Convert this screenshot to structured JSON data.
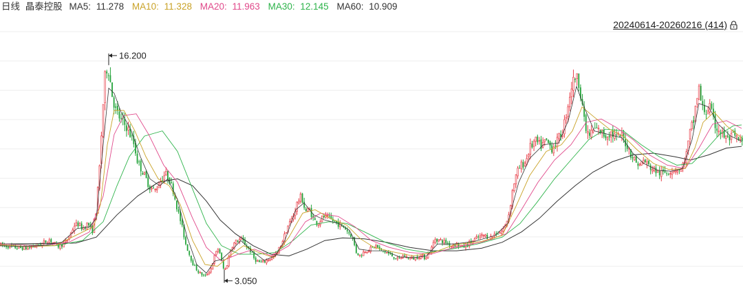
{
  "legend": {
    "period": "日线",
    "stock_name": "晶泰控股",
    "ma5": {
      "label": "MA5:",
      "value": "11.278",
      "color": "#333333"
    },
    "ma10": {
      "label": "MA10:",
      "value": "11.328",
      "color": "#c9a227"
    },
    "ma20": {
      "label": "MA20:",
      "value": "11.963",
      "color": "#e0488a"
    },
    "ma30": {
      "label": "MA30:",
      "value": "12.145",
      "color": "#2db34a"
    },
    "ma60": {
      "label": "MA60:",
      "value": "10.909",
      "color": "#333333"
    }
  },
  "range": {
    "text": "20240614-20260216 (414)",
    "icon": "lock-icon"
  },
  "colors": {
    "up": "#e8404a",
    "down": "#23a33a",
    "grid": "#eeeeee"
  },
  "chart_data": {
    "type": "candlestick",
    "bars": 414,
    "date_range": [
      "2024-06-14",
      "2026-02-16"
    ],
    "annotations": {
      "high": {
        "label": "16.200",
        "value": 16.2
      },
      "low": {
        "label": "3.050",
        "value": 3.05
      }
    },
    "ylim": [
      2.6,
      17.6
    ],
    "close_path": [
      [
        0,
        5.15
      ],
      [
        20,
        5.0
      ],
      [
        40,
        4.95
      ],
      [
        60,
        5.2
      ],
      [
        72,
        5.45
      ],
      [
        84,
        5.05
      ],
      [
        96,
        5.3
      ],
      [
        104,
        5.9
      ],
      [
        108,
        6.3
      ],
      [
        114,
        6.35
      ],
      [
        120,
        6.1
      ],
      [
        128,
        6.4
      ],
      [
        134,
        5.9
      ],
      [
        140,
        7.2
      ],
      [
        145,
        9.8
      ],
      [
        148,
        12.0
      ],
      [
        152,
        14.8
      ],
      [
        156,
        15.6
      ],
      [
        159,
        15.2
      ],
      [
        162,
        14.1
      ],
      [
        168,
        13.0
      ],
      [
        176,
        12.4
      ],
      [
        185,
        12.0
      ],
      [
        195,
        11.0
      ],
      [
        200,
        10.0
      ],
      [
        210,
        9.2
      ],
      [
        218,
        8.5
      ],
      [
        225,
        8.3
      ],
      [
        232,
        8.8
      ],
      [
        240,
        9.3
      ],
      [
        245,
        9.1
      ],
      [
        252,
        8.3
      ],
      [
        258,
        7.2
      ],
      [
        264,
        6.3
      ],
      [
        270,
        5.2
      ],
      [
        276,
        4.5
      ],
      [
        282,
        3.9
      ],
      [
        290,
        3.5
      ],
      [
        298,
        3.3
      ],
      [
        306,
        3.7
      ],
      [
        312,
        4.5
      ],
      [
        318,
        5.0
      ],
      [
        323,
        4.0
      ],
      [
        326,
        3.6
      ],
      [
        330,
        4.0
      ],
      [
        336,
        5.0
      ],
      [
        342,
        5.3
      ],
      [
        350,
        5.5
      ],
      [
        358,
        5.1
      ],
      [
        364,
        4.8
      ],
      [
        370,
        4.3
      ],
      [
        378,
        4.1
      ],
      [
        386,
        4.2
      ],
      [
        394,
        4.4
      ],
      [
        402,
        4.6
      ],
      [
        410,
        5.3
      ],
      [
        418,
        6.2
      ],
      [
        426,
        6.8
      ],
      [
        432,
        7.6
      ],
      [
        438,
        8.0
      ],
      [
        444,
        7.1
      ],
      [
        450,
        7.2
      ],
      [
        456,
        6.6
      ],
      [
        462,
        6.4
      ],
      [
        470,
        6.8
      ],
      [
        478,
        6.7
      ],
      [
        486,
        6.5
      ],
      [
        494,
        6.3
      ],
      [
        500,
        6.2
      ],
      [
        506,
        5.9
      ],
      [
        512,
        5.6
      ],
      [
        518,
        4.7
      ],
      [
        524,
        4.5
      ],
      [
        530,
        4.8
      ],
      [
        538,
        4.9
      ],
      [
        546,
        5.1
      ],
      [
        554,
        4.8
      ],
      [
        562,
        4.7
      ],
      [
        570,
        4.5
      ],
      [
        578,
        4.3
      ],
      [
        586,
        4.5
      ],
      [
        594,
        4.4
      ],
      [
        602,
        4.35
      ],
      [
        610,
        4.5
      ],
      [
        618,
        4.4
      ],
      [
        626,
        4.8
      ],
      [
        632,
        5.5
      ],
      [
        640,
        5.4
      ],
      [
        648,
        5.3
      ],
      [
        656,
        5.1
      ],
      [
        664,
        5.2
      ],
      [
        672,
        5.0
      ],
      [
        680,
        5.2
      ],
      [
        688,
        5.4
      ],
      [
        696,
        5.6
      ],
      [
        704,
        5.7
      ],
      [
        712,
        5.55
      ],
      [
        720,
        5.8
      ],
      [
        728,
        5.9
      ],
      [
        734,
        6.2
      ],
      [
        740,
        7.0
      ],
      [
        746,
        8.6
      ],
      [
        752,
        9.4
      ],
      [
        758,
        9.8
      ],
      [
        764,
        10.0
      ],
      [
        770,
        10.8
      ],
      [
        778,
        11.2
      ],
      [
        786,
        10.9
      ],
      [
        794,
        11.2
      ],
      [
        802,
        10.8
      ],
      [
        810,
        11.2
      ],
      [
        818,
        11.8
      ],
      [
        824,
        13.0
      ],
      [
        830,
        14.3
      ],
      [
        836,
        15.0
      ],
      [
        841,
        14.7
      ],
      [
        846,
        13.6
      ],
      [
        850,
        12.0
      ],
      [
        856,
        11.5
      ],
      [
        864,
        11.9
      ],
      [
        872,
        11.8
      ],
      [
        880,
        11.5
      ],
      [
        888,
        11.7
      ],
      [
        896,
        11.4
      ],
      [
        904,
        11.5
      ],
      [
        912,
        10.9
      ],
      [
        918,
        10.4
      ],
      [
        924,
        10.0
      ],
      [
        930,
        9.8
      ],
      [
        936,
        10.1
      ],
      [
        944,
        9.7
      ],
      [
        952,
        9.5
      ],
      [
        960,
        9.3
      ],
      [
        968,
        9.4
      ],
      [
        976,
        9.5
      ],
      [
        984,
        9.6
      ],
      [
        990,
        9.5
      ],
      [
        998,
        10.5
      ],
      [
        1004,
        11.9
      ],
      [
        1008,
        12.3
      ],
      [
        1012,
        13.5
      ],
      [
        1016,
        14.3
      ],
      [
        1020,
        13.2
      ],
      [
        1026,
        12.9
      ],
      [
        1032,
        13.2
      ],
      [
        1038,
        12.2
      ],
      [
        1044,
        11.9
      ],
      [
        1050,
        11.6
      ],
      [
        1058,
        11.3
      ],
      [
        1066,
        11.5
      ],
      [
        1072,
        11.3
      ],
      [
        1078,
        11.1
      ]
    ],
    "ma5_path": [
      [
        0,
        5.1
      ],
      [
        30,
        5.05
      ],
      [
        60,
        5.1
      ],
      [
        90,
        5.3
      ],
      [
        112,
        6.1
      ],
      [
        130,
        6.2
      ],
      [
        140,
        6.7
      ],
      [
        150,
        11.0
      ],
      [
        158,
        14.3
      ],
      [
        166,
        14.0
      ],
      [
        176,
        12.9
      ],
      [
        190,
        11.9
      ],
      [
        204,
        10.3
      ],
      [
        218,
        9.0
      ],
      [
        232,
        8.6
      ],
      [
        244,
        9.0
      ],
      [
        258,
        7.8
      ],
      [
        272,
        5.6
      ],
      [
        286,
        4.0
      ],
      [
        300,
        3.5
      ],
      [
        312,
        4.2
      ],
      [
        322,
        4.3
      ],
      [
        336,
        4.8
      ],
      [
        350,
        5.4
      ],
      [
        366,
        4.8
      ],
      [
        384,
        4.25
      ],
      [
        400,
        4.5
      ],
      [
        414,
        5.4
      ],
      [
        430,
        7.2
      ],
      [
        442,
        7.6
      ],
      [
        456,
        6.9
      ],
      [
        472,
        6.6
      ],
      [
        492,
        6.4
      ],
      [
        508,
        6.0
      ],
      [
        522,
        4.9
      ],
      [
        540,
        4.8
      ],
      [
        560,
        4.8
      ],
      [
        580,
        4.45
      ],
      [
        600,
        4.4
      ],
      [
        620,
        4.5
      ],
      [
        636,
        5.2
      ],
      [
        660,
        5.2
      ],
      [
        690,
        5.35
      ],
      [
        720,
        5.7
      ],
      [
        738,
        6.4
      ],
      [
        754,
        8.8
      ],
      [
        770,
        10.2
      ],
      [
        790,
        11.0
      ],
      [
        812,
        11.1
      ],
      [
        826,
        12.4
      ],
      [
        838,
        14.4
      ],
      [
        850,
        13.1
      ],
      [
        864,
        11.8
      ],
      [
        884,
        11.6
      ],
      [
        904,
        11.4
      ],
      [
        920,
        10.5
      ],
      [
        936,
        9.9
      ],
      [
        956,
        9.5
      ],
      [
        976,
        9.45
      ],
      [
        992,
        9.6
      ],
      [
        1006,
        11.3
      ],
      [
        1016,
        13.4
      ],
      [
        1030,
        13.2
      ],
      [
        1044,
        12.2
      ],
      [
        1062,
        11.5
      ],
      [
        1078,
        11.2
      ]
    ],
    "ma10_path": [
      [
        0,
        5.15
      ],
      [
        40,
        5.05
      ],
      [
        80,
        5.1
      ],
      [
        110,
        5.7
      ],
      [
        136,
        6.2
      ],
      [
        146,
        7.5
      ],
      [
        156,
        11.0
      ],
      [
        166,
        13.0
      ],
      [
        180,
        13.0
      ],
      [
        196,
        11.8
      ],
      [
        212,
        10.3
      ],
      [
        230,
        9.0
      ],
      [
        246,
        8.6
      ],
      [
        262,
        7.5
      ],
      [
        280,
        5.4
      ],
      [
        298,
        4.0
      ],
      [
        316,
        3.9
      ],
      [
        334,
        4.5
      ],
      [
        354,
        5.1
      ],
      [
        376,
        4.7
      ],
      [
        398,
        4.4
      ],
      [
        420,
        5.6
      ],
      [
        440,
        7.0
      ],
      [
        458,
        7.2
      ],
      [
        480,
        6.7
      ],
      [
        504,
        6.3
      ],
      [
        524,
        5.5
      ],
      [
        544,
        5.0
      ],
      [
        570,
        4.75
      ],
      [
        600,
        4.5
      ],
      [
        630,
        4.7
      ],
      [
        660,
        5.15
      ],
      [
        700,
        5.35
      ],
      [
        730,
        5.7
      ],
      [
        750,
        7.4
      ],
      [
        770,
        9.2
      ],
      [
        794,
        10.6
      ],
      [
        816,
        11.0
      ],
      [
        832,
        11.8
      ],
      [
        846,
        13.2
      ],
      [
        864,
        12.6
      ],
      [
        886,
        11.9
      ],
      [
        906,
        11.5
      ],
      [
        926,
        10.7
      ],
      [
        950,
        9.9
      ],
      [
        972,
        9.55
      ],
      [
        996,
        9.6
      ],
      [
        1010,
        10.8
      ],
      [
        1022,
        12.3
      ],
      [
        1038,
        12.9
      ],
      [
        1056,
        12.1
      ],
      [
        1078,
        11.4
      ]
    ],
    "ma20_path": [
      [
        0,
        5.2
      ],
      [
        60,
        5.1
      ],
      [
        100,
        5.3
      ],
      [
        130,
        5.9
      ],
      [
        150,
        8.0
      ],
      [
        166,
        11.6
      ],
      [
        180,
        12.7
      ],
      [
        198,
        12.8
      ],
      [
        216,
        11.6
      ],
      [
        238,
        9.8
      ],
      [
        258,
        8.8
      ],
      [
        280,
        6.7
      ],
      [
        300,
        5.0
      ],
      [
        322,
        4.2
      ],
      [
        346,
        4.6
      ],
      [
        370,
        4.9
      ],
      [
        394,
        4.5
      ],
      [
        420,
        5.1
      ],
      [
        444,
        6.5
      ],
      [
        466,
        7.0
      ],
      [
        492,
        6.8
      ],
      [
        516,
        6.2
      ],
      [
        540,
        5.4
      ],
      [
        566,
        5.0
      ],
      [
        596,
        4.7
      ],
      [
        626,
        4.6
      ],
      [
        660,
        5.0
      ],
      [
        700,
        5.3
      ],
      [
        736,
        5.8
      ],
      [
        758,
        7.2
      ],
      [
        782,
        8.8
      ],
      [
        806,
        10.1
      ],
      [
        830,
        11.0
      ],
      [
        852,
        12.3
      ],
      [
        874,
        12.5
      ],
      [
        896,
        12.0
      ],
      [
        920,
        11.3
      ],
      [
        944,
        10.4
      ],
      [
        970,
        9.8
      ],
      [
        996,
        9.6
      ],
      [
        1016,
        10.8
      ],
      [
        1036,
        12.2
      ],
      [
        1056,
        12.4
      ],
      [
        1078,
        11.95
      ]
    ],
    "ma30_path": [
      [
        0,
        5.2
      ],
      [
        80,
        5.1
      ],
      [
        120,
        5.4
      ],
      [
        150,
        6.5
      ],
      [
        170,
        8.6
      ],
      [
        188,
        10.3
      ],
      [
        210,
        11.5
      ],
      [
        236,
        11.8
      ],
      [
        258,
        10.6
      ],
      [
        280,
        8.4
      ],
      [
        300,
        6.4
      ],
      [
        322,
        5.1
      ],
      [
        348,
        4.6
      ],
      [
        374,
        4.6
      ],
      [
        400,
        4.7
      ],
      [
        426,
        5.4
      ],
      [
        452,
        6.3
      ],
      [
        478,
        6.5
      ],
      [
        504,
        6.4
      ],
      [
        530,
        5.9
      ],
      [
        560,
        5.3
      ],
      [
        590,
        4.9
      ],
      [
        620,
        4.7
      ],
      [
        656,
        4.9
      ],
      [
        694,
        5.2
      ],
      [
        730,
        5.6
      ],
      [
        756,
        6.4
      ],
      [
        780,
        7.6
      ],
      [
        806,
        9.0
      ],
      [
        832,
        10.2
      ],
      [
        856,
        11.3
      ],
      [
        880,
        11.9
      ],
      [
        906,
        11.8
      ],
      [
        932,
        11.0
      ],
      [
        958,
        10.3
      ],
      [
        984,
        9.8
      ],
      [
        1006,
        9.9
      ],
      [
        1026,
        10.7
      ],
      [
        1046,
        11.6
      ],
      [
        1066,
        12.1
      ],
      [
        1078,
        12.15
      ]
    ],
    "ma60_path": [
      [
        0,
        5.2
      ],
      [
        110,
        5.25
      ],
      [
        140,
        5.6
      ],
      [
        170,
        6.9
      ],
      [
        200,
        8.0
      ],
      [
        230,
        8.8
      ],
      [
        258,
        9.0
      ],
      [
        280,
        8.6
      ],
      [
        300,
        7.7
      ],
      [
        320,
        6.6
      ],
      [
        342,
        5.8
      ],
      [
        368,
        5.1
      ],
      [
        394,
        4.6
      ],
      [
        420,
        4.5
      ],
      [
        446,
        4.9
      ],
      [
        472,
        5.4
      ],
      [
        498,
        5.55
      ],
      [
        530,
        5.5
      ],
      [
        562,
        5.3
      ],
      [
        596,
        5.0
      ],
      [
        630,
        4.8
      ],
      [
        664,
        4.8
      ],
      [
        700,
        4.95
      ],
      [
        730,
        5.3
      ],
      [
        758,
        5.9
      ],
      [
        784,
        6.7
      ],
      [
        810,
        7.7
      ],
      [
        836,
        8.6
      ],
      [
        862,
        9.4
      ],
      [
        890,
        10.0
      ],
      [
        920,
        10.4
      ],
      [
        950,
        10.5
      ],
      [
        980,
        10.3
      ],
      [
        1004,
        10.1
      ],
      [
        1030,
        10.4
      ],
      [
        1056,
        10.8
      ],
      [
        1078,
        10.9
      ]
    ]
  }
}
